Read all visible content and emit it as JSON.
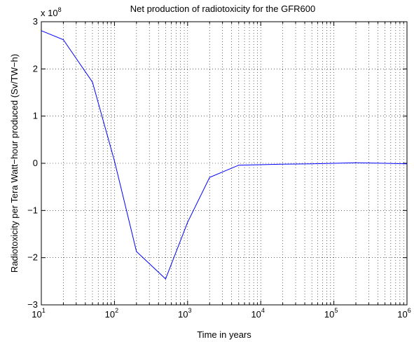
{
  "chart_data": {
    "type": "line",
    "title": "Net production of radiotoxicity for the GFR600",
    "xlabel": "Time in years",
    "ylabel": "Radiotoxicity per Tera Watt−hour produced (Sv/TW−h)",
    "x_scale": "log",
    "xlim": [
      10,
      1000000
    ],
    "ylim": [
      -300000000,
      300000000
    ],
    "y_multiplier": "x 10",
    "y_multiplier_exp": "8",
    "x_ticks": [
      {
        "base": "10",
        "exp": "1"
      },
      {
        "base": "10",
        "exp": "2"
      },
      {
        "base": "10",
        "exp": "3"
      },
      {
        "base": "10",
        "exp": "4"
      },
      {
        "base": "10",
        "exp": "5"
      },
      {
        "base": "10",
        "exp": "6"
      }
    ],
    "y_tick_values": [
      -3,
      -2,
      -1,
      0,
      1,
      2,
      3
    ],
    "y_tick_labels": [
      "−3",
      "−2",
      "−1",
      "0",
      "1",
      "2",
      "3"
    ],
    "grid": true,
    "line_color": "#0000ff",
    "series": [
      {
        "x": [
          10,
          20,
          50,
          100,
          200,
          500,
          1000,
          2000,
          5000,
          10000,
          20000,
          50000,
          100000,
          200000,
          500000,
          1000000
        ],
        "y": [
          281000000,
          262000000,
          172000000,
          5000000,
          -187000000,
          -245000000,
          -125000000,
          -30000000,
          -4000000,
          -3000000,
          -2000000,
          -1000000,
          0,
          1000000,
          0,
          -1000000
        ]
      }
    ]
  }
}
